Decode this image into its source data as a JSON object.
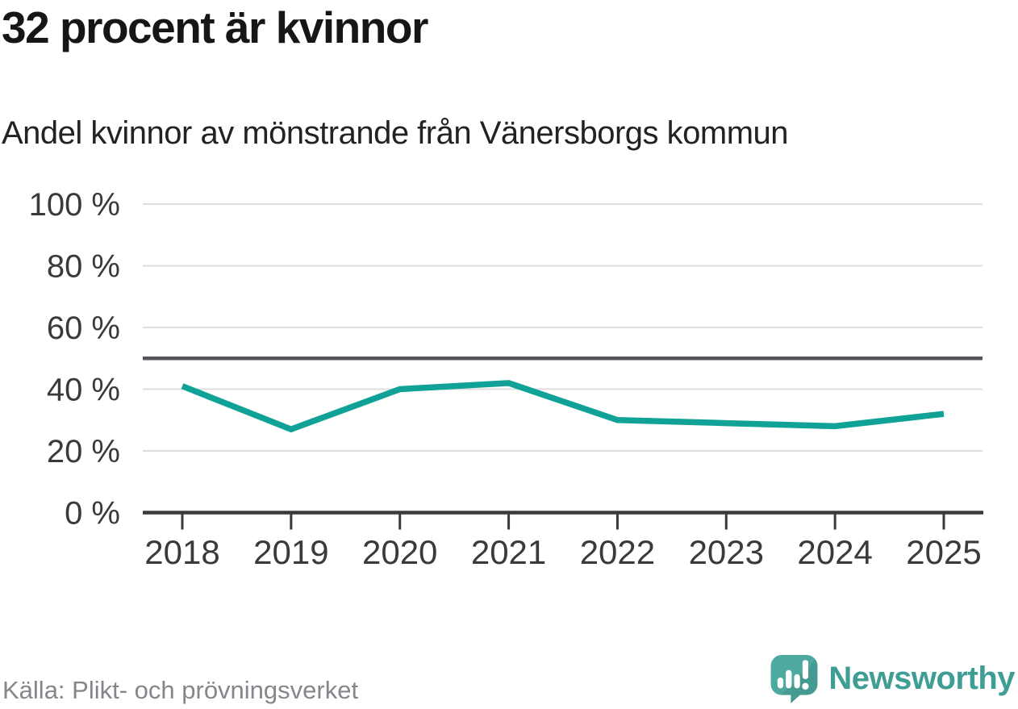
{
  "header": {
    "title": "32 procent är kvinnor",
    "subtitle": "Andel kvinnor av mönstrande från Vänersborgs kommun"
  },
  "footer": {
    "source": "Källa: Plikt- och prövningsverket",
    "brand": "Newsworthy"
  },
  "colors": {
    "line": "#10A296",
    "reference": "#55555B",
    "grid": "#DEDEDE",
    "axis": "#3A3A3A",
    "tick_text": "#3A3A3A",
    "title_text": "#161616",
    "source_text": "#85858C",
    "brand_teal": "#3F9E94",
    "logo_fill_light": "#4EAAA0",
    "logo_fill_dark": "#459B91",
    "logo_glyph": "#FFFFFF"
  },
  "chart_data": {
    "type": "line",
    "title": "32 procent är kvinnor",
    "subtitle": "Andel kvinnor av mönstrande från Vänersborgs kommun",
    "x": [
      "2018",
      "2019",
      "2020",
      "2021",
      "2022",
      "2023",
      "2024",
      "2025"
    ],
    "series": [
      {
        "name": "Andel kvinnor av mönstrande",
        "values": [
          41,
          27,
          40,
          42,
          30,
          29,
          28,
          32
        ]
      }
    ],
    "unit": "%",
    "ylim": [
      0,
      100
    ],
    "yticks": [
      0,
      20,
      40,
      60,
      80,
      100
    ],
    "ytick_suffix": " %",
    "reference_line": 50,
    "grid": true,
    "legend": "none"
  }
}
